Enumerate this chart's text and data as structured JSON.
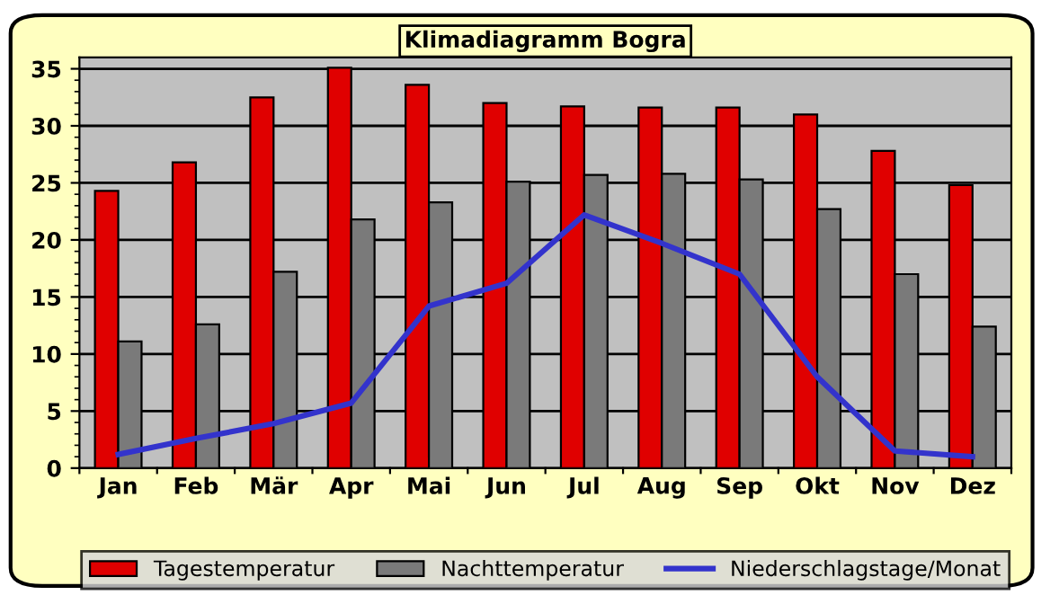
{
  "chart_data": {
    "type": "bar",
    "title": "Klimadiagramm Bogra",
    "categories": [
      "Jan",
      "Feb",
      "Mär",
      "Apr",
      "Mai",
      "Jun",
      "Jul",
      "Aug",
      "Sep",
      "Okt",
      "Nov",
      "Dez"
    ],
    "series": [
      {
        "name": "Tagestemperatur",
        "color": "#e00000",
        "values": [
          24.3,
          26.8,
          32.5,
          35.1,
          33.6,
          32.0,
          31.7,
          31.6,
          31.6,
          31.0,
          27.8,
          24.8
        ]
      },
      {
        "name": "Nachttemperatur",
        "color": "#7a7a7a",
        "values": [
          11.1,
          12.6,
          17.2,
          21.8,
          23.3,
          25.1,
          25.7,
          25.8,
          25.3,
          22.7,
          17.0,
          12.4
        ]
      },
      {
        "name": "Niederschlagstage/Monat",
        "type": "line",
        "color": "#3333cc",
        "values": [
          1.2,
          2.6,
          3.9,
          5.7,
          14.2,
          16.2,
          22.2,
          19.7,
          17.0,
          8.0,
          1.5,
          1.0
        ]
      }
    ],
    "ylim": [
      0,
      36
    ],
    "yticks": [
      0,
      5,
      10,
      15,
      20,
      25,
      30,
      35
    ],
    "grid": "y",
    "legend": "bottom"
  }
}
